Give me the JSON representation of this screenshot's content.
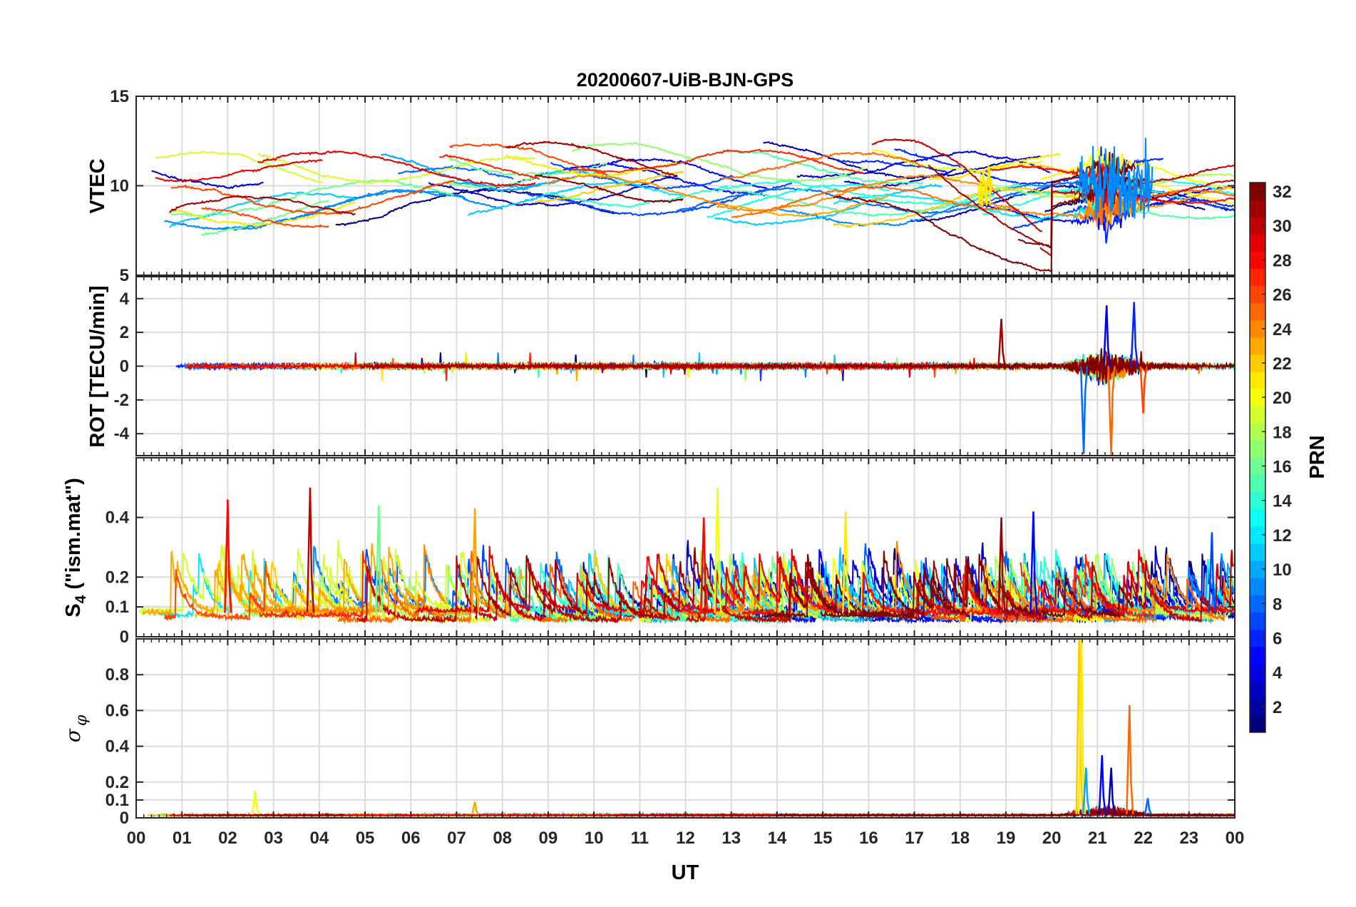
{
  "chart_data": {
    "type": "line",
    "title": "20200607-UiB-BJN-GPS",
    "xlabel": "UT",
    "x_ticks": [
      "00",
      "01",
      "02",
      "03",
      "04",
      "05",
      "06",
      "07",
      "08",
      "09",
      "10",
      "11",
      "12",
      "13",
      "14",
      "15",
      "16",
      "17",
      "18",
      "19",
      "20",
      "21",
      "22",
      "23",
      "00"
    ],
    "x_range_hours": [
      0,
      24
    ],
    "colorbar": {
      "label": "PRN",
      "range": [
        1,
        32
      ],
      "ticks": [
        "2",
        "4",
        "6",
        "8",
        "10",
        "12",
        "14",
        "16",
        "18",
        "20",
        "22",
        "24",
        "26",
        "28",
        "30",
        "32"
      ],
      "colormap": "jet"
    },
    "panels": [
      {
        "name": "vtec",
        "ylabel": "VTEC",
        "ylim": [
          5,
          15
        ],
        "y_ticks": [
          {
            "v": 5,
            "label": "5"
          },
          {
            "v": 10,
            "label": "10"
          },
          {
            "v": 15,
            "label": "15"
          }
        ],
        "grid": true,
        "baseline": 10,
        "series_summary": "one track per PRN, values mostly 8-12 TECU; disturbed 20-22 UT with peaks near 14 and dips near 5",
        "disturbances": [
          {
            "t_start": 18.4,
            "t_end": 18.7,
            "amplitude": 2.2
          },
          {
            "t_start": 20.6,
            "t_end": 22.2,
            "amplitude": 3.5
          }
        ]
      },
      {
        "name": "rot",
        "ylabel": "ROT [TECU/min]",
        "ylim": [
          -5.3,
          5.3
        ],
        "y_ticks": [
          {
            "v": -4,
            "label": "-4"
          },
          {
            "v": -2,
            "label": "-2"
          },
          {
            "v": 0,
            "label": "0"
          },
          {
            "v": 2,
            "label": "2"
          },
          {
            "v": 4,
            "label": "4"
          }
        ],
        "grid": true,
        "baseline": 0,
        "series_summary": "noise around 0 within about +/-0.5; bursts up to about +/-3 near 19 UT and about +/-5 at 20.5-22 UT",
        "spikes": [
          {
            "t": 18.9,
            "value": 2.8,
            "prn": 31
          },
          {
            "t": 20.7,
            "value": -5.2,
            "prn": 8
          },
          {
            "t": 21.2,
            "value": 3.6,
            "prn": 4
          },
          {
            "t": 21.3,
            "value": -5.3,
            "prn": 25
          },
          {
            "t": 21.8,
            "value": 3.8,
            "prn": 6
          },
          {
            "t": 22.0,
            "value": -2.8,
            "prn": 26
          }
        ]
      },
      {
        "name": "s4",
        "ylabel": "S4 (\"ism.mat\")",
        "ylabel_parts": {
          "main": "S",
          "sub": "4",
          "rest": " (\"ism.mat\")"
        },
        "ylim": [
          0,
          0.6
        ],
        "y_ticks": [
          {
            "v": 0,
            "label": "0"
          },
          {
            "v": 0.1,
            "label": "0.1"
          },
          {
            "v": 0.2,
            "label": "0.2"
          },
          {
            "v": 0.4,
            "label": "0.4"
          }
        ],
        "grid": true,
        "baseline": 0.08,
        "series_summary": "background 0.05-0.15 with frequent spikes 0.2-0.3; largest about 0.5",
        "spikes": [
          {
            "t": 2.0,
            "value": 0.46,
            "prn": 28
          },
          {
            "t": 3.8,
            "value": 0.5,
            "prn": 30
          },
          {
            "t": 5.3,
            "value": 0.44,
            "prn": 16
          },
          {
            "t": 7.4,
            "value": 0.43,
            "prn": 23
          },
          {
            "t": 12.7,
            "value": 0.5,
            "prn": 20
          },
          {
            "t": 12.4,
            "value": 0.4,
            "prn": 28
          },
          {
            "t": 15.5,
            "value": 0.42,
            "prn": 21
          },
          {
            "t": 18.9,
            "value": 0.4,
            "prn": 31
          },
          {
            "t": 19.6,
            "value": 0.42,
            "prn": 5
          },
          {
            "t": 23.5,
            "value": 0.35,
            "prn": 7
          }
        ]
      },
      {
        "name": "sigma_phi",
        "ylabel": "σφ",
        "ylabel_parts": {
          "main": "σ",
          "sub": "φ"
        },
        "ylim": [
          0,
          1
        ],
        "y_ticks": [
          {
            "v": 0,
            "label": "0"
          },
          {
            "v": 0.1,
            "label": "0.1"
          },
          {
            "v": 0.2,
            "label": "0.2"
          },
          {
            "v": 0.4,
            "label": "0.4"
          },
          {
            "v": 0.6,
            "label": "0.6"
          },
          {
            "v": 0.8,
            "label": "0.8"
          }
        ],
        "grid": true,
        "baseline": 0.02,
        "series_summary": "mostly below 0.05; large spikes 20.6-21.8 UT",
        "spikes": [
          {
            "t": 2.6,
            "value": 0.15,
            "prn": 20
          },
          {
            "t": 7.4,
            "value": 0.09,
            "prn": 23
          },
          {
            "t": 20.6,
            "value": 1.0,
            "prn": 22
          },
          {
            "t": 20.65,
            "value": 1.0,
            "prn": 21
          },
          {
            "t": 20.75,
            "value": 0.28,
            "prn": 10
          },
          {
            "t": 21.1,
            "value": 0.35,
            "prn": 5
          },
          {
            "t": 21.3,
            "value": 0.28,
            "prn": 3
          },
          {
            "t": 21.7,
            "value": 0.63,
            "prn": 25
          },
          {
            "t": 22.1,
            "value": 0.11,
            "prn": 8
          }
        ]
      }
    ]
  }
}
